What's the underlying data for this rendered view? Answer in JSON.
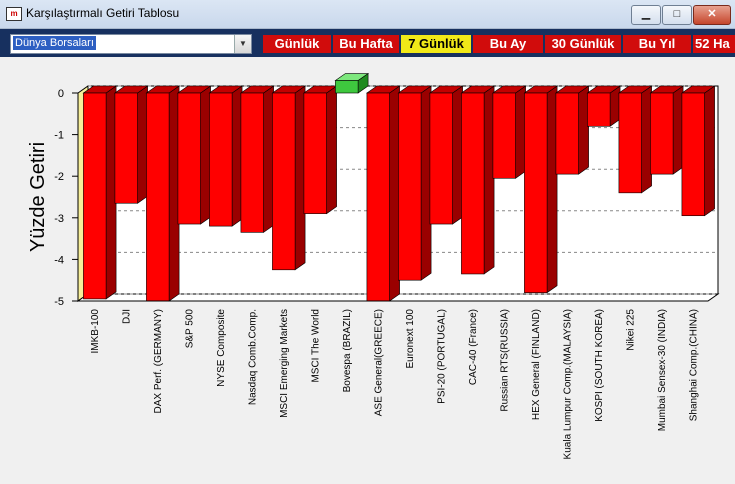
{
  "window": {
    "title": "Karşılaştırmalı Getiri Tablosu",
    "app_icon_text": "m",
    "minimize_glyph": "▁",
    "maximize_glyph": "□",
    "close_glyph": "✕"
  },
  "toolbar": {
    "market_select": {
      "value": "Dünya Borsaları",
      "arrow_glyph": "▼"
    },
    "period_tabs": [
      {
        "label": "Günlük",
        "active": false
      },
      {
        "label": "Bu Hafta",
        "active": false
      },
      {
        "label": "7 Günlük",
        "active": true
      },
      {
        "label": "Bu Ay",
        "active": false
      },
      {
        "label": "30 Günlük",
        "active": false
      },
      {
        "label": "Bu Yıl",
        "active": false
      },
      {
        "label": "52 Ha",
        "active": false
      }
    ]
  },
  "colors": {
    "negative_bar": "#ff0000",
    "positive_bar": "#3ec83e",
    "active_tab": "#f1e918",
    "tab": "#d10c0c",
    "toolbar": "#17305f"
  },
  "chart_data": {
    "type": "bar",
    "ylabel": "Yüzde Getiri",
    "ylim": [
      -5,
      0
    ],
    "yticks": [
      "0",
      "-1",
      "-2",
      "-3",
      "-4",
      "-5"
    ],
    "grid": true,
    "legend": "none",
    "categories": [
      "IMKB-100",
      "DJI",
      "DAX Perf. (GERMANY)",
      "S&P 500",
      "NYSE Composite",
      "Nasdaq Comb.Comp.",
      "MSCI Emerging Markets",
      "MSCI The World",
      "Bovespa (BRAZIL)",
      "ASE General(GREECE)",
      "Euronext 100",
      "PSI-20 (PORTUGAL)",
      "CAC-40 (France)",
      "Russian RTS(RUSSIA)",
      "HEX General (FINLAND)",
      "Kuala Lumpur Comp.(MALAYSIA)",
      "KOSPI (SOUTH KOREA)",
      "Nikei 225",
      "Mumbai Sensex-30 (INDIA)",
      "Shanghai Comp.(CHINA)"
    ],
    "values": [
      -4.95,
      -2.65,
      -5.0,
      -3.15,
      -3.2,
      -3.35,
      -4.25,
      -2.9,
      0.3,
      -5.0,
      -4.5,
      -3.15,
      -4.35,
      -2.05,
      -4.8,
      -1.95,
      -0.8,
      -2.4,
      -1.95,
      -2.95
    ]
  }
}
